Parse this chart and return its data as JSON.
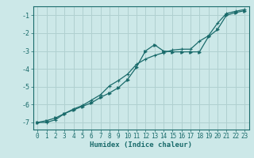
{
  "xlabel": "Humidex (Indice chaleur)",
  "background_color": "#cce8e8",
  "grid_color": "#b0d0d0",
  "line_color": "#1a6b6b",
  "xlim": [
    -0.5,
    23.5
  ],
  "ylim": [
    -7.4,
    -0.5
  ],
  "x_ticks": [
    0,
    1,
    2,
    3,
    4,
    5,
    6,
    7,
    8,
    9,
    10,
    11,
    12,
    13,
    14,
    15,
    16,
    17,
    18,
    19,
    20,
    21,
    22,
    23
  ],
  "y_ticks": [
    -7,
    -6,
    -5,
    -4,
    -3,
    -2,
    -1
  ],
  "line1_x": [
    0,
    1,
    2,
    3,
    4,
    5,
    6,
    7,
    8,
    9,
    10,
    11,
    12,
    13,
    14,
    15,
    16,
    17,
    18,
    19,
    20,
    21,
    22,
    23
  ],
  "line1_y": [
    -7.0,
    -6.9,
    -6.75,
    -6.5,
    -6.3,
    -6.1,
    -5.9,
    -5.6,
    -5.35,
    -5.05,
    -4.6,
    -3.9,
    -3.0,
    -2.65,
    -3.0,
    -3.05,
    -3.05,
    -3.05,
    -3.05,
    -2.2,
    -1.8,
    -1.0,
    -0.85,
    -0.75
  ],
  "line2_x": [
    0,
    1,
    2,
    3,
    4,
    5,
    6,
    7,
    8,
    9,
    10,
    11,
    12,
    13,
    14,
    15,
    16,
    17,
    18,
    19,
    20,
    21,
    22,
    23
  ],
  "line2_y": [
    -7.0,
    -7.0,
    -6.85,
    -6.5,
    -6.25,
    -6.05,
    -5.75,
    -5.45,
    -4.95,
    -4.65,
    -4.3,
    -3.75,
    -3.45,
    -3.25,
    -3.1,
    -2.95,
    -2.9,
    -2.9,
    -2.45,
    -2.15,
    -1.45,
    -0.9,
    -0.78,
    -0.68
  ]
}
